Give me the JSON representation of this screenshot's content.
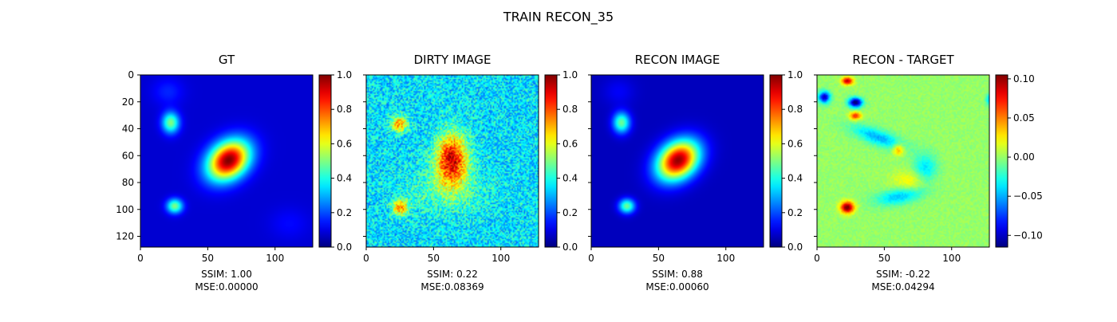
{
  "figure": {
    "title": "TRAIN RECON_35"
  },
  "chart_data": [
    {
      "type": "heatmap",
      "title": "GT",
      "xlim": [
        0,
        128
      ],
      "ylim": [
        128,
        0
      ],
      "xticks": [
        0,
        50,
        100
      ],
      "yticks": [
        0,
        20,
        40,
        60,
        80,
        100,
        120
      ],
      "show_ytick_labels": true,
      "colorbar": {
        "min": 0.0,
        "max": 1.0,
        "ticks": [
          0.0,
          0.2,
          0.4,
          0.6,
          0.8,
          1.0
        ],
        "labels": [
          "0.0",
          "0.2",
          "0.4",
          "0.6",
          "0.8",
          "1.0"
        ]
      },
      "caption": [
        "SSIM: 1.00",
        "MSE:0.00000"
      ],
      "colormap": "jet",
      "background_level": 0.08,
      "blobs": [
        {
          "x": 65,
          "y": 63,
          "sx": 12,
          "sy": 9,
          "angle": -40,
          "amp": 0.92
        },
        {
          "x": 22,
          "y": 35,
          "sx": 4.5,
          "sy": 5.5,
          "angle": 0,
          "amp": 0.42
        },
        {
          "x": 25,
          "y": 97,
          "sx": 4.2,
          "sy": 3.8,
          "angle": 0,
          "amp": 0.42
        },
        {
          "x": 20,
          "y": 12,
          "sx": 8,
          "sy": 7,
          "angle": 0,
          "amp": 0.08
        },
        {
          "x": 110,
          "y": 110,
          "sx": 10,
          "sy": 8,
          "angle": 0,
          "amp": 0.05
        }
      ]
    },
    {
      "type": "heatmap",
      "title": "DIRTY IMAGE",
      "xlim": [
        0,
        128
      ],
      "ylim": [
        128,
        0
      ],
      "xticks": [
        0,
        50,
        100
      ],
      "yticks": [
        0,
        20,
        40,
        60,
        80,
        100,
        120
      ],
      "show_ytick_labels": false,
      "colorbar": {
        "min": 0.0,
        "max": 1.0,
        "ticks": [
          0.0,
          0.2,
          0.4,
          0.6,
          0.8,
          1.0
        ],
        "labels": [
          "0.0",
          "0.2",
          "0.4",
          "0.6",
          "0.8",
          "1.0"
        ]
      },
      "caption": [
        "SSIM: 0.22",
        "MSE:0.08369"
      ],
      "colormap": "jet",
      "background_level": 0.35,
      "noise": 0.12,
      "blobs": [
        {
          "x": 63,
          "y": 62,
          "sx": 8,
          "sy": 13,
          "angle": 0,
          "amp": 0.55
        },
        {
          "x": 24,
          "y": 36,
          "sx": 4,
          "sy": 4,
          "angle": 0,
          "amp": 0.4
        },
        {
          "x": 25,
          "y": 98,
          "sx": 4,
          "sy": 4,
          "angle": 0,
          "amp": 0.4
        },
        {
          "x": 60,
          "y": 85,
          "sx": 20,
          "sy": 12,
          "angle": 0,
          "amp": 0.12
        }
      ]
    },
    {
      "type": "heatmap",
      "title": "RECON IMAGE",
      "xlim": [
        0,
        128
      ],
      "ylim": [
        128,
        0
      ],
      "xticks": [
        0,
        50,
        100
      ],
      "yticks": [
        0,
        20,
        40,
        60,
        80,
        100,
        120
      ],
      "show_ytick_labels": false,
      "colorbar": {
        "min": 0.0,
        "max": 1.0,
        "ticks": [
          0.0,
          0.2,
          0.4,
          0.6,
          0.8,
          1.0
        ],
        "labels": [
          "0.0",
          "0.2",
          "0.4",
          "0.6",
          "0.8",
          "1.0"
        ]
      },
      "caption": [
        "SSIM: 0.88",
        "MSE:0.00060"
      ],
      "colormap": "jet",
      "background_level": 0.06,
      "blobs": [
        {
          "x": 64,
          "y": 63,
          "sx": 12,
          "sy": 9,
          "angle": -40,
          "amp": 0.92
        },
        {
          "x": 22,
          "y": 35,
          "sx": 4.5,
          "sy": 5.5,
          "angle": 0,
          "amp": 0.42
        },
        {
          "x": 26,
          "y": 97,
          "sx": 4.2,
          "sy": 3.8,
          "angle": 0,
          "amp": 0.42
        },
        {
          "x": 20,
          "y": 12,
          "sx": 8,
          "sy": 7,
          "angle": 0,
          "amp": 0.06
        }
      ]
    },
    {
      "type": "heatmap",
      "title": "RECON - TARGET",
      "xlim": [
        0,
        128
      ],
      "ylim": [
        128,
        0
      ],
      "xticks": [
        0,
        50,
        100
      ],
      "yticks": [
        0,
        20,
        40,
        60,
        80,
        100,
        120
      ],
      "show_ytick_labels": false,
      "colorbar": {
        "min": -0.115,
        "max": 0.105,
        "ticks": [
          -0.1,
          -0.05,
          0.0,
          0.05,
          0.1
        ],
        "labels": [
          "−0.10",
          "−0.05",
          "0.00",
          "0.05",
          "0.10"
        ]
      },
      "caption": [
        "SSIM: -0.22",
        "MSE:0.04294"
      ],
      "colormap": "jet",
      "background_level": 0.0,
      "noise": 0.006,
      "blobs": [
        {
          "x": 22,
          "y": 98,
          "sx": 3.5,
          "sy": 3,
          "angle": 0,
          "amp": 0.11
        },
        {
          "x": 28,
          "y": 20,
          "sx": 3.5,
          "sy": 2.5,
          "angle": 0,
          "amp": -0.12
        },
        {
          "x": 5,
          "y": 16,
          "sx": 3,
          "sy": 3,
          "angle": 0,
          "amp": -0.1
        },
        {
          "x": 22,
          "y": 4,
          "sx": 3,
          "sy": 2,
          "angle": 0,
          "amp": 0.09
        },
        {
          "x": 28,
          "y": 30,
          "sx": 3,
          "sy": 2,
          "angle": 0,
          "amp": 0.07
        },
        {
          "x": 60,
          "y": 55,
          "sx": 3,
          "sy": 3,
          "angle": 0,
          "amp": 0.05
        },
        {
          "x": 45,
          "y": 46,
          "sx": 14,
          "sy": 4,
          "angle": 20,
          "amp": -0.05
        },
        {
          "x": 60,
          "y": 90,
          "sx": 12,
          "sy": 4,
          "angle": -10,
          "amp": -0.045
        },
        {
          "x": 80,
          "y": 70,
          "sx": 6,
          "sy": 8,
          "angle": 0,
          "amp": -0.04
        },
        {
          "x": 70,
          "y": 78,
          "sx": 10,
          "sy": 5,
          "angle": 0,
          "amp": 0.025
        },
        {
          "x": 128,
          "y": 18,
          "sx": 2,
          "sy": 3,
          "angle": 0,
          "amp": -0.05
        }
      ]
    }
  ]
}
